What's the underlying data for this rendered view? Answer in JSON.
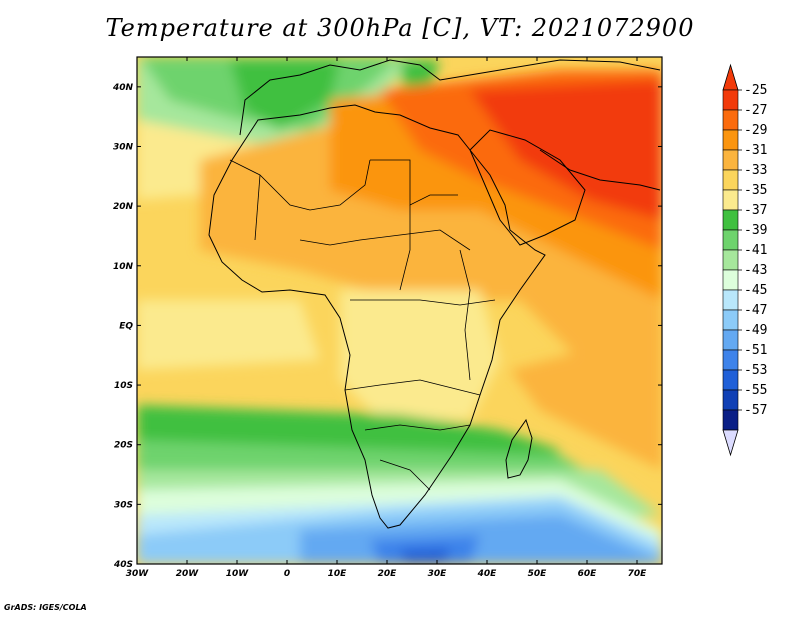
{
  "title": "Temperature at 300hPa [C], VT: 2021072900",
  "credit": "GrADS: IGES/COLA",
  "lon_ticks": [
    "30W",
    "20W",
    "10W",
    "0",
    "10E",
    "20E",
    "30E",
    "40E",
    "50E",
    "60E",
    "70E"
  ],
  "lat_ticks": [
    "40N",
    "30N",
    "20N",
    "10N",
    "EQ",
    "10S",
    "20S",
    "30S",
    "40S"
  ],
  "colorbar": {
    "labels": [
      "-25",
      "-27",
      "-29",
      "-31",
      "-33",
      "-35",
      "-37",
      "-39",
      "-41",
      "-43",
      "-45",
      "-47",
      "-49",
      "-51",
      "-53",
      "-55",
      "-57"
    ],
    "colors": [
      "#f23a0a",
      "#fb6b0d",
      "#fb950f",
      "#fbb43e",
      "#fbd55c",
      "#fbea8e",
      "#3fc03f",
      "#6ed36d",
      "#a6e79c",
      "#ddfedc",
      "#b9e7fb",
      "#8ccbf8",
      "#64a9f2",
      "#3e83ea",
      "#2060d8",
      "#1040b5",
      "#0a1f86"
    ],
    "top_arrow_color": "#f23a0a",
    "bottom_arrow_color": "#dcdcff"
  },
  "chart_data": {
    "type": "heatmap",
    "title": "Temperature at 300hPa [C], VT: 2021072900",
    "variable": "Temperature",
    "level": "300hPa",
    "units": "C",
    "valid_time": "2021072900",
    "lon_range": [
      -30,
      75
    ],
    "lat_range": [
      -40,
      45
    ],
    "contour_levels": [
      -25,
      -27,
      -29,
      -31,
      -33,
      -35,
      -37,
      -39,
      -41,
      -43,
      -45,
      -47,
      -49,
      -51,
      -53,
      -55,
      -57
    ],
    "regions": [
      {
        "region": "Arabian Peninsula / Iran / Pakistan",
        "approx_value": -26
      },
      {
        "region": "Sahara / Libya / Egypt",
        "approx_value": -28
      },
      {
        "region": "Sahel / West Africa",
        "approx_value": -31
      },
      {
        "region": "Equatorial Africa / Atlantic",
        "approx_value": -33
      },
      {
        "region": "Mediterranean / Iberia",
        "approx_value": -37
      },
      {
        "region": "Southern Africa 20S-25S band",
        "approx_value": -37
      },
      {
        "region": "South Atlantic 30S",
        "approx_value": -42
      },
      {
        "region": "South of Cape 35S-40S",
        "approx_value": -48
      }
    ]
  }
}
